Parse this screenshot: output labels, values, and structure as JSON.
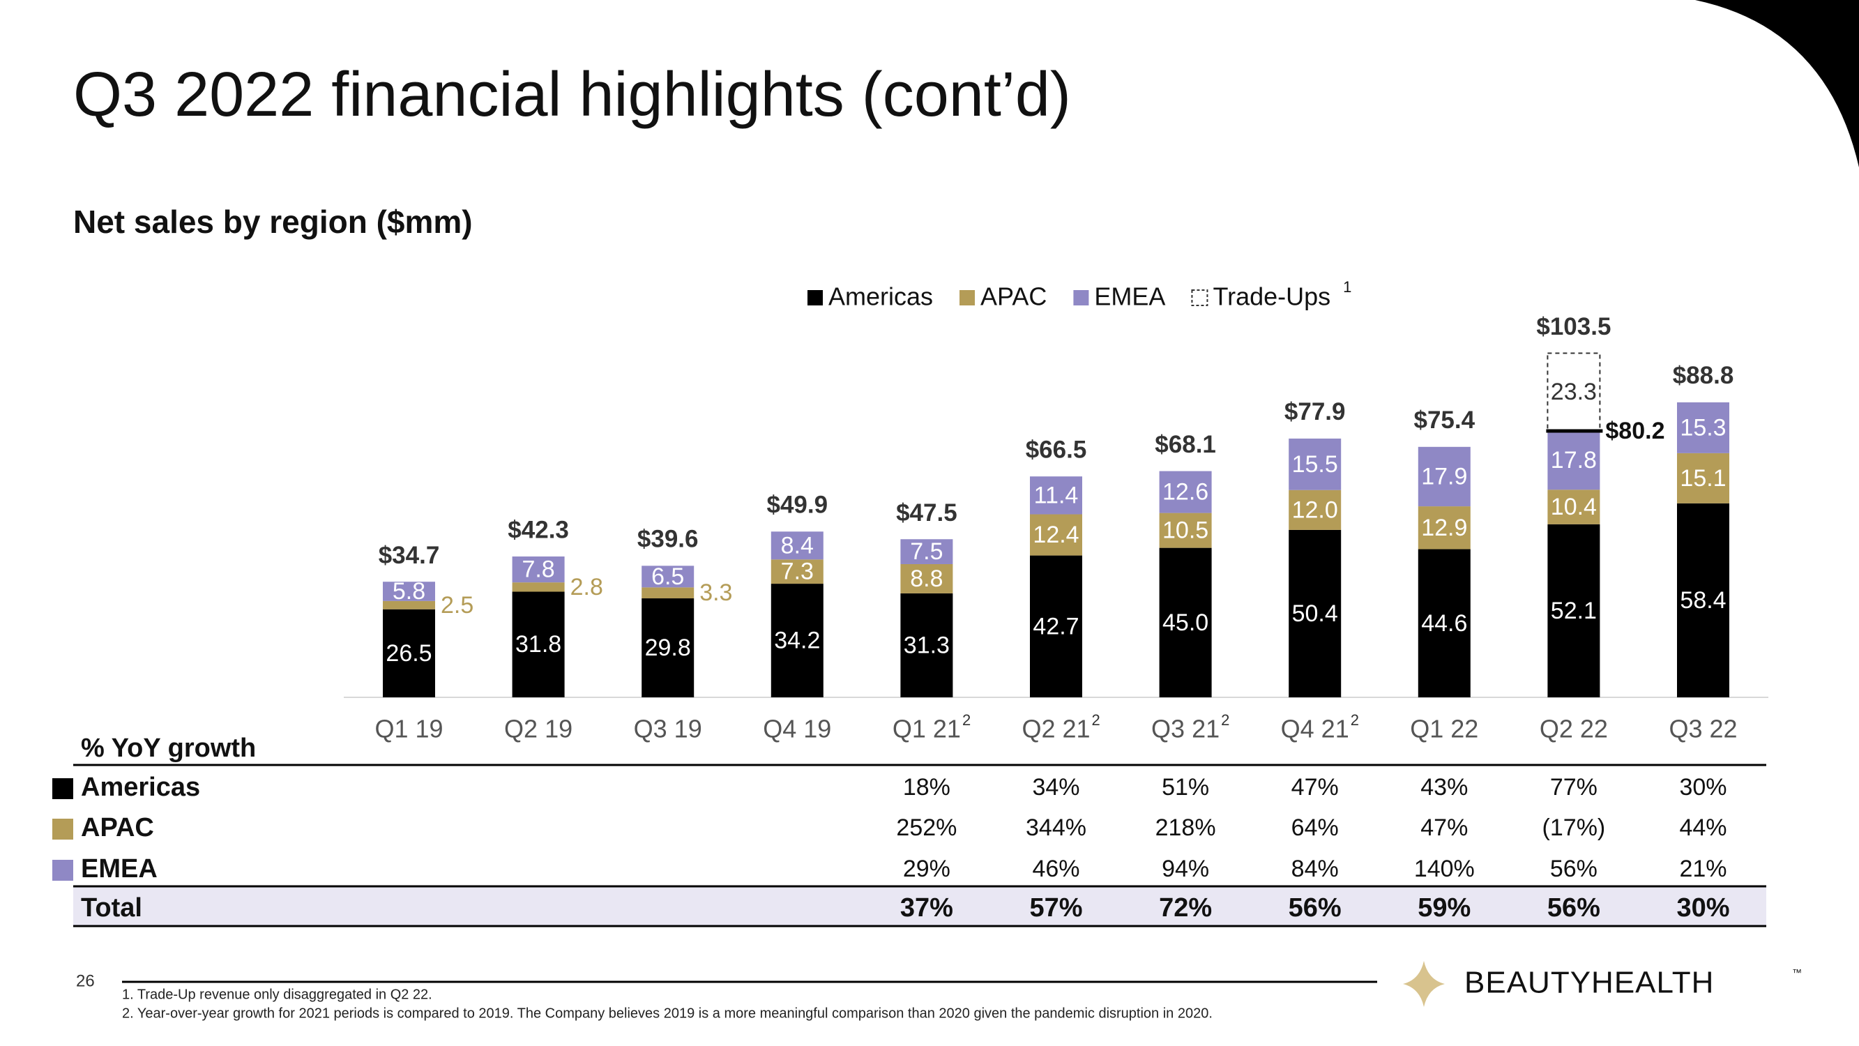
{
  "header": {
    "title": "Q3 2022 financial highlights (cont’d)",
    "subtitle": "Net sales by region ($mm)"
  },
  "chart_data": {
    "type": "stacked_bar",
    "categories": [
      "Q1 19",
      "Q2 19",
      "Q3 19",
      "Q4 19",
      "Q1 21",
      "Q2 21",
      "Q3 21",
      "Q4 21",
      "Q1 22",
      "Q2 22",
      "Q3 22"
    ],
    "category_notes": [
      null,
      null,
      null,
      null,
      "2",
      "2",
      "2",
      "2",
      null,
      null,
      null
    ],
    "ylim": [
      0,
      110
    ],
    "series": [
      {
        "name": "Americas",
        "color": "#000000",
        "values": [
          26.5,
          31.8,
          29.8,
          34.2,
          31.3,
          42.7,
          45.0,
          50.4,
          44.6,
          52.1,
          58.4
        ],
        "value_labels": [
          "26.5",
          "31.8",
          "29.8",
          "34.2",
          "31.3",
          "42.7",
          "45.0",
          "50.4",
          "44.6",
          "52.1",
          "58.4"
        ]
      },
      {
        "name": "APAC",
        "color": "#b49c57",
        "values": [
          2.5,
          2.8,
          3.3,
          7.3,
          8.8,
          12.4,
          10.5,
          12.0,
          12.9,
          10.4,
          15.1
        ],
        "value_labels": [
          "2.5",
          "2.8",
          "3.3",
          "7.3",
          "8.8",
          "12.4",
          "10.5",
          "12.0",
          "12.9",
          "10.4",
          "15.1"
        ]
      },
      {
        "name": "EMEA",
        "color": "#8f88c5",
        "values": [
          5.8,
          7.8,
          6.5,
          8.4,
          7.5,
          11.4,
          12.6,
          15.5,
          17.9,
          17.8,
          15.3
        ],
        "value_labels": [
          "5.8",
          "7.8",
          "6.5",
          "8.4",
          "7.5",
          "11.4",
          "12.6",
          "15.5",
          "17.9",
          "17.8",
          "15.3"
        ]
      },
      {
        "name": "Trade-Ups",
        "note": "1",
        "color": "#333333",
        "dashed": true,
        "values": [
          null,
          null,
          null,
          null,
          null,
          null,
          null,
          null,
          null,
          23.3,
          null
        ],
        "value_labels": [
          null,
          null,
          null,
          null,
          null,
          null,
          null,
          null,
          null,
          "23.3",
          null
        ]
      }
    ],
    "totals": {
      "values": [
        34.7,
        42.3,
        39.6,
        49.9,
        47.5,
        66.5,
        68.1,
        77.9,
        75.4,
        103.5,
        88.8
      ],
      "value_labels": [
        "$34.7",
        "$42.3",
        "$39.6",
        "$49.9",
        "$47.5",
        "$66.5",
        "$68.1",
        "$77.9",
        "$75.4",
        "$103.5",
        "$88.8"
      ]
    },
    "annotations": [
      {
        "category": "Q2 22",
        "value": 80.2,
        "label": "$80.2"
      }
    ]
  },
  "table": {
    "title": "% YoY growth",
    "rows": [
      {
        "label": "Americas",
        "values": [
          "18%",
          "34%",
          "51%",
          "47%",
          "43%",
          "77%",
          "30%"
        ]
      },
      {
        "label": "APAC",
        "values": [
          "252%",
          "344%",
          "218%",
          "64%",
          "47%",
          "(17%)",
          "44%"
        ]
      },
      {
        "label": "EMEA",
        "values": [
          "29%",
          "46%",
          "94%",
          "84%",
          "140%",
          "56%",
          "21%"
        ]
      },
      {
        "label": "Total",
        "values": [
          "37%",
          "57%",
          "72%",
          "56%",
          "59%",
          "56%",
          "30%"
        ]
      }
    ]
  },
  "footnotes": [
    "1. Trade-Up revenue only disaggregated in Q2 22.",
    "2. Year-over-year growth for 2021 periods is compared to 2019. The Company believes 2019 is a more meaningful comparison than 2020 given the pandemic disruption in 2020."
  ],
  "page_number": "26",
  "logo": {
    "name": "BEAUTYHEALTH",
    "mark": "™"
  }
}
